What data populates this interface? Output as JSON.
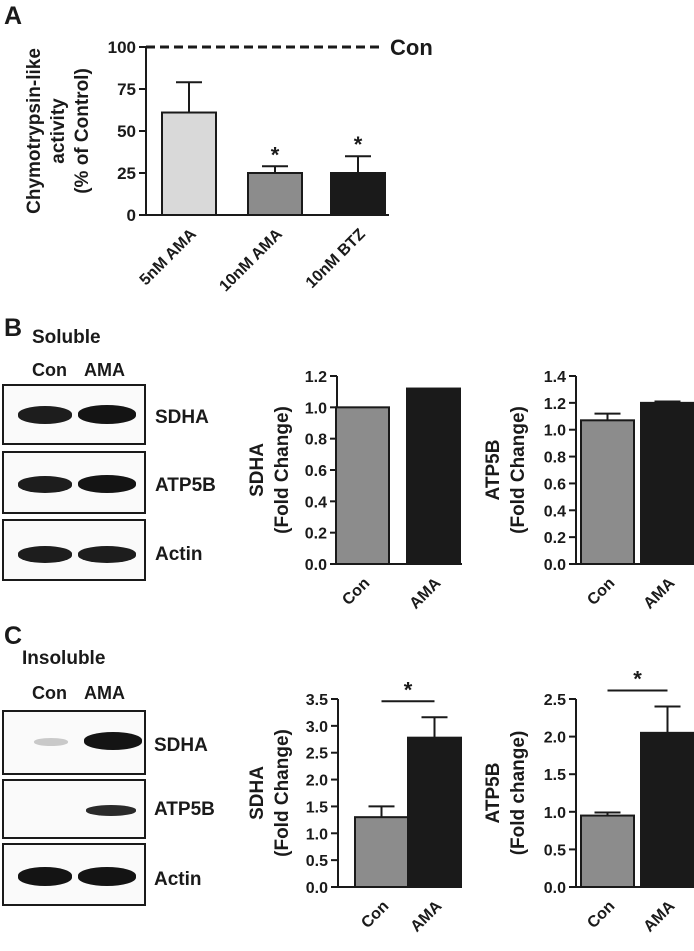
{
  "panels": {
    "A": {
      "letter": "A",
      "chart_data": {
        "type": "bar",
        "ylabel_lines": [
          "Chymotrypsin-like",
          "activity",
          "(% of Control)"
        ],
        "yticks": [
          0,
          25,
          50,
          75,
          100
        ],
        "ylim": [
          0,
          100
        ],
        "categories": [
          "5nM AMA",
          "10nM AMA",
          "10nM BTZ"
        ],
        "values": [
          61,
          25,
          25
        ],
        "errors": [
          18,
          4,
          10
        ],
        "colors": [
          "#d9d9d9",
          "#8c8c8c",
          "#1a1a1a"
        ],
        "significance": [
          "",
          "*",
          "*"
        ],
        "reference_line": {
          "value": 100,
          "label": "Con"
        },
        "grid": false
      }
    },
    "B": {
      "letter": "B",
      "fraction_label": "Soluble",
      "lanes": [
        "Con",
        "AMA"
      ],
      "blot_rows": [
        "SDHA",
        "ATP5B",
        "Actin"
      ],
      "charts": [
        {
          "type": "bar",
          "ylabel_lines": [
            "SDHA",
            "(Fold Change)"
          ],
          "yticks": [
            "0.0",
            "0.2",
            "0.4",
            "0.6",
            "0.8",
            "1.0",
            "1.2"
          ],
          "ylim": [
            0,
            1.2
          ],
          "categories": [
            "Con",
            "AMA"
          ],
          "values": [
            1.0,
            1.12
          ],
          "errors": [
            0,
            0
          ],
          "colors": [
            "#8c8c8c",
            "#1a1a1a"
          ],
          "significance": null
        },
        {
          "type": "bar",
          "ylabel_lines": [
            "ATP5B",
            "(Fold Change)"
          ],
          "yticks": [
            "0.0",
            "0.2",
            "0.4",
            "0.6",
            "0.8",
            "1.0",
            "1.2",
            "1.4"
          ],
          "ylim": [
            0,
            1.4
          ],
          "categories": [
            "Con",
            "AMA"
          ],
          "values": [
            1.07,
            1.2
          ],
          "errors": [
            0.05,
            0.01
          ],
          "colors": [
            "#8c8c8c",
            "#1a1a1a"
          ],
          "significance": null
        }
      ]
    },
    "C": {
      "letter": "C",
      "fraction_label": "Insoluble",
      "lanes": [
        "Con",
        "AMA"
      ],
      "blot_rows": [
        "SDHA",
        "ATP5B",
        "Actin"
      ],
      "charts": [
        {
          "type": "bar",
          "ylabel_lines": [
            "SDHA",
            "(Fold Change)"
          ],
          "yticks": [
            "0.0",
            "0.5",
            "1.0",
            "1.5",
            "2.0",
            "2.5",
            "3.0",
            "3.5"
          ],
          "ylim": [
            0,
            3.5
          ],
          "categories": [
            "Con",
            "AMA"
          ],
          "values": [
            1.3,
            2.78
          ],
          "errors": [
            0.2,
            0.38
          ],
          "colors": [
            "#8c8c8c",
            "#1a1a1a"
          ],
          "significance": "*"
        },
        {
          "type": "bar",
          "ylabel_lines": [
            "ATP5B",
            "(Fold change)"
          ],
          "yticks": [
            "0.0",
            "0.5",
            "1.0",
            "1.5",
            "2.0",
            "2.5"
          ],
          "ylim": [
            0,
            2.5
          ],
          "categories": [
            "Con",
            "AMA"
          ],
          "values": [
            0.95,
            2.05
          ],
          "errors": [
            0.04,
            0.35
          ],
          "colors": [
            "#8c8c8c",
            "#1a1a1a"
          ],
          "significance": "*"
        }
      ]
    }
  }
}
